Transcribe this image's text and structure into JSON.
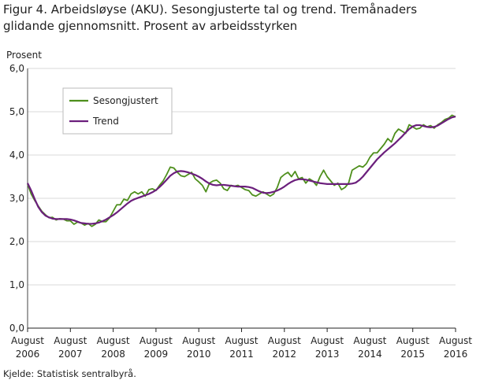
{
  "chart_data": {
    "type": "line",
    "title": "Figur 4. Arbeidsløyse (AKU). Sesongjusterte tal og trend. Tremånaders glidande gjennomsnitt. Prosent av arbeidsstyrken",
    "y_label": "Prosent",
    "source": "Kjelde: Statistisk sentralbyrå.",
    "categories": [
      "August 2006",
      null,
      null,
      null,
      null,
      null,
      null,
      null,
      null,
      null,
      null,
      null,
      "August 2007",
      null,
      null,
      null,
      null,
      null,
      null,
      null,
      null,
      null,
      null,
      null,
      "August 2008",
      null,
      null,
      null,
      null,
      null,
      null,
      null,
      null,
      null,
      null,
      null,
      "August 2009",
      null,
      null,
      null,
      null,
      null,
      null,
      null,
      null,
      null,
      null,
      null,
      "August 2010",
      null,
      null,
      null,
      null,
      null,
      null,
      null,
      null,
      null,
      null,
      null,
      "August 2011",
      null,
      null,
      null,
      null,
      null,
      null,
      null,
      null,
      null,
      null,
      null,
      "August 2012",
      null,
      null,
      null,
      null,
      null,
      null,
      null,
      null,
      null,
      null,
      null,
      "August 2013",
      null,
      null,
      null,
      null,
      null,
      null,
      null,
      null,
      null,
      null,
      null,
      "August 2014",
      null,
      null,
      null,
      null,
      null,
      null,
      null,
      null,
      null,
      null,
      null,
      "August 2015",
      null,
      null,
      null,
      null,
      null,
      null,
      null,
      null,
      null,
      null,
      null,
      "August 2016"
    ],
    "series": [
      {
        "name": "Sesongjustert",
        "color": "#4e8f1c",
        "values": [
          3.33,
          3.1,
          2.95,
          2.82,
          2.7,
          2.62,
          2.55,
          2.56,
          2.5,
          2.53,
          2.52,
          2.48,
          2.48,
          2.4,
          2.45,
          2.43,
          2.38,
          2.42,
          2.35,
          2.4,
          2.5,
          2.46,
          2.46,
          2.55,
          2.7,
          2.85,
          2.85,
          2.98,
          2.95,
          3.1,
          3.15,
          3.1,
          3.15,
          3.05,
          3.2,
          3.22,
          3.18,
          3.3,
          3.4,
          3.55,
          3.72,
          3.7,
          3.6,
          3.52,
          3.5,
          3.55,
          3.6,
          3.45,
          3.38,
          3.3,
          3.15,
          3.35,
          3.4,
          3.42,
          3.35,
          3.22,
          3.18,
          3.3,
          3.28,
          3.3,
          3.25,
          3.2,
          3.18,
          3.08,
          3.05,
          3.1,
          3.15,
          3.1,
          3.05,
          3.1,
          3.25,
          3.48,
          3.55,
          3.6,
          3.5,
          3.62,
          3.45,
          3.48,
          3.35,
          3.45,
          3.4,
          3.3,
          3.5,
          3.65,
          3.5,
          3.4,
          3.3,
          3.35,
          3.2,
          3.25,
          3.35,
          3.65,
          3.7,
          3.75,
          3.72,
          3.8,
          3.95,
          4.05,
          4.05,
          4.15,
          4.25,
          4.38,
          4.3,
          4.5,
          4.6,
          4.55,
          4.5,
          4.7,
          4.65,
          4.6,
          4.62,
          4.7,
          4.65,
          4.68,
          4.62,
          4.7,
          4.75,
          4.82,
          4.85,
          4.92,
          4.88
        ]
      },
      {
        "name": "Trend",
        "color": "#6b1f7c",
        "values": [
          3.35,
          3.18,
          2.98,
          2.8,
          2.68,
          2.6,
          2.56,
          2.53,
          2.52,
          2.52,
          2.52,
          2.52,
          2.51,
          2.49,
          2.46,
          2.43,
          2.42,
          2.41,
          2.41,
          2.42,
          2.44,
          2.47,
          2.51,
          2.56,
          2.61,
          2.67,
          2.74,
          2.81,
          2.88,
          2.94,
          2.98,
          3.01,
          3.04,
          3.07,
          3.1,
          3.14,
          3.19,
          3.26,
          3.34,
          3.43,
          3.52,
          3.58,
          3.62,
          3.63,
          3.62,
          3.6,
          3.57,
          3.54,
          3.5,
          3.45,
          3.39,
          3.34,
          3.31,
          3.3,
          3.31,
          3.31,
          3.3,
          3.29,
          3.28,
          3.27,
          3.27,
          3.27,
          3.26,
          3.24,
          3.2,
          3.16,
          3.13,
          3.12,
          3.13,
          3.15,
          3.18,
          3.22,
          3.27,
          3.33,
          3.38,
          3.42,
          3.44,
          3.44,
          3.43,
          3.41,
          3.39,
          3.37,
          3.35,
          3.34,
          3.33,
          3.33,
          3.33,
          3.33,
          3.33,
          3.33,
          3.33,
          3.34,
          3.36,
          3.42,
          3.5,
          3.6,
          3.7,
          3.8,
          3.9,
          3.98,
          4.06,
          4.13,
          4.2,
          4.27,
          4.35,
          4.43,
          4.52,
          4.6,
          4.66,
          4.69,
          4.69,
          4.67,
          4.65,
          4.64,
          4.65,
          4.68,
          4.73,
          4.78,
          4.83,
          4.87,
          4.89
        ]
      }
    ],
    "ylim": [
      0,
      6
    ],
    "yticks": [
      {
        "value": 0,
        "label": "0,0"
      },
      {
        "value": 1,
        "label": "1,0"
      },
      {
        "value": 2,
        "label": "2,0"
      },
      {
        "value": 3,
        "label": "3,0"
      },
      {
        "value": 4,
        "label": "4,0"
      },
      {
        "value": 5,
        "label": "5,0"
      },
      {
        "value": 6,
        "label": "6,0"
      }
    ],
    "grid": true,
    "legend": "upper-left"
  }
}
